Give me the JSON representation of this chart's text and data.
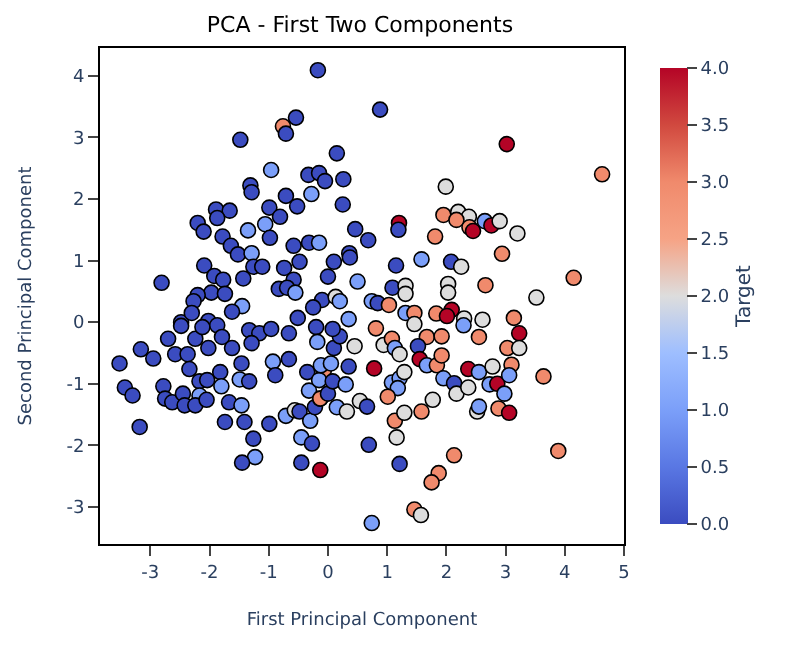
{
  "chart_data": {
    "type": "scatter",
    "title": "PCA - First Two Components",
    "xlabel": "First Principal Component",
    "ylabel": "Second Principal Component",
    "clabel": "Target",
    "x": [
      -0.17,
      -0.54,
      -0.76,
      -0.71,
      -1.48,
      0.15,
      -0.96,
      -0.33,
      -0.15,
      -0.05,
      0.26,
      -1.31,
      -1.29,
      -0.71,
      -0.28,
      -0.99,
      -0.52,
      0.25,
      -1.89,
      -1.66,
      -1.87,
      -0.81,
      -2.2,
      -2.1,
      -1.35,
      -1.06,
      -0.98,
      -1.78,
      0.46,
      -1.64,
      -1.52,
      -1.29,
      -0.58,
      -0.32,
      -0.15,
      0.36,
      -0.48,
      0.1,
      -2.09,
      -1.26,
      -1.11,
      -0.74,
      -1.92,
      -1.77,
      -1.43,
      -2.81,
      -0.58,
      0,
      0.5,
      -1.97,
      -1.74,
      -2.2,
      -2.27,
      -0.83,
      -0.69,
      -0.55,
      -1.45,
      -1.62,
      -0.1,
      0.13,
      0.2,
      -0.25,
      0.35,
      -2.48,
      -2.02,
      -0.51,
      -2.3,
      0.88,
      3.02,
      4.63,
      1.99,
      0.68,
      1.2,
      1.19,
      1.95,
      2.2,
      2.38,
      2.17,
      2.39,
      2.45,
      2.65,
      2.76,
      2.9,
      3.2,
      1.81,
      2.94,
      1.58,
      2.08,
      2.25,
      1.15,
      0.37,
      1.09,
      1.31,
      1.31,
      2.03,
      2.03,
      2.66,
      4.15,
      3.52,
      0.74,
      0.84,
      1.03,
      1.31,
      1.46,
      1.83,
      2.09,
      2.01,
      2.3,
      2.61,
      3.14,
      -3.52,
      -3.43,
      -3.3,
      -3.18,
      -3.16,
      -2.95,
      -2.7,
      -2.58,
      -2.78,
      -2.75,
      -2.63,
      -2.45,
      -2.42,
      -2.48,
      -2.37,
      -2.24,
      -2.12,
      -2.02,
      -2.34,
      -2.17,
      -2.04,
      -2.17,
      -2.24,
      -2.05,
      -1.87,
      -1.79,
      -1.82,
      -1.8,
      -1.67,
      -1.74,
      -1.62,
      -1.46,
      -1.49,
      -1.46,
      -1.41,
      -1.33,
      -1.16,
      -1.29,
      -1.33,
      -0.96,
      -1.26,
      -1.23,
      -1.45,
      -0.99,
      -0.93,
      -0.89,
      -0.66,
      -0.66,
      -0.71,
      -0.56,
      -0.48,
      -0.45,
      -0.45,
      -0.35,
      -0.32,
      -0.3,
      -0.27,
      -0.22,
      -0.2,
      -0.18,
      -0.13,
      -0.13,
      -0.07,
      -0.13,
      -0.15,
      -0.12,
      0,
      0.05,
      0.1,
      0.15,
      0.08,
      0.2,
      0.3,
      0.32,
      0.35,
      0.45,
      0.54,
      0.08,
      0.81,
      0.94,
      1.08,
      1.13,
      1.21,
      0.78,
      1.08,
      1.21,
      1.29,
      1.18,
      1.01,
      0.66,
      1.13,
      1.29,
      1.16,
      0.69,
      1.21,
      1.58,
      1.77,
      1.46,
      1.67,
      1.52,
      1.55,
      1.67,
      1.84,
      1.92,
      1.92,
      1.95,
      2.13,
      2.17,
      2.29,
      2.37,
      2.37,
      2.55,
      2.55,
      2.52,
      2.55,
      2.73,
      2.78,
      2.86,
      2.88,
      2.13,
      1.87,
      1.75,
      1.46,
      1.57,
      0.74,
      3.03,
      3.23,
      3.23,
      3.1,
      3.06,
      2.98,
      3.06,
      3.64,
      3.89
    ],
    "values": [
      4.09,
      3.32,
      3.18,
      3.06,
      2.96,
      2.74,
      2.47,
      2.39,
      2.42,
      2.29,
      2.32,
      2.22,
      2.11,
      2.05,
      2.08,
      1.86,
      1.88,
      1.91,
      1.83,
      1.81,
      1.69,
      1.71,
      1.61,
      1.47,
      1.49,
      1.59,
      1.37,
      1.39,
      1.51,
      1.24,
      1.1,
      1.12,
      1.24,
      1.29,
      1.29,
      1.12,
      0.98,
      0.98,
      0.92,
      0.9,
      0.9,
      0.88,
      0.75,
      0.69,
      0.71,
      0.64,
      0.69,
      0.74,
      0.66,
      0.48,
      0.46,
      0.44,
      0.34,
      0.54,
      0.56,
      0.48,
      0.26,
      0.17,
      0.36,
      0.41,
      0.34,
      0.24,
      0.05,
      0,
      0.02,
      0.07,
      0.15,
      3.45,
      2.89,
      2.4,
      2.2,
      1.33,
      1.61,
      1.5,
      1.74,
      1.79,
      1.71,
      1.66,
      1.54,
      1.48,
      1.64,
      1.57,
      1.64,
      1.44,
      1.39,
      1.11,
      1.02,
      0.98,
      0.9,
      0.92,
      1.05,
      0.56,
      0.59,
      0.46,
      0.62,
      0.48,
      0.6,
      0.72,
      0.4,
      0.34,
      0.31,
      0.28,
      0.15,
      0.15,
      0.14,
      0.2,
      0.1,
      0.06,
      0.04,
      0.07,
      -0.67,
      -1.06,
      -1.19,
      -1.7,
      -0.44,
      -0.59,
      -0.27,
      -0.52,
      -1.04,
      -1.24,
      -1.3,
      -1.16,
      -1.35,
      -0.06,
      -0.52,
      -0.27,
      -0.08,
      -0.42,
      -0.76,
      -0.96,
      -0.94,
      -1.19,
      -1.35,
      -1.26,
      -0.05,
      -0.24,
      -0.81,
      -1.04,
      -1.3,
      -1.62,
      -0.42,
      -0.67,
      -0.93,
      -1.35,
      -1.62,
      -0.13,
      -0.18,
      -0.34,
      -0.96,
      -0.11,
      -1.89,
      -2.19,
      -2.28,
      -1.65,
      -0.64,
      -0.86,
      -0.18,
      -0.6,
      -1.52,
      -1.43,
      -1.45,
      -1.87,
      -2.28,
      -0.81,
      -1.11,
      -1.6,
      -1.97,
      -1.38,
      -0.08,
      -0.32,
      -2.4,
      -1.24,
      -0.79,
      -1.24,
      -0.94,
      -0.7,
      -1.16,
      -0.67,
      -0.42,
      -1.38,
      -0.96,
      -0.23,
      -1.01,
      -1.45,
      -0.72,
      -0.39,
      -1.28,
      -0.11,
      -0.1,
      -0.37,
      -0.27,
      -0.42,
      -0.52,
      -0.75,
      -0.98,
      -0.91,
      -0.81,
      -1.07,
      -1.21,
      -1.37,
      -1.6,
      -1.47,
      -1.87,
      -1.99,
      -2.3,
      -1.45,
      -1.26,
      -0.03,
      -0.24,
      -0.39,
      -0.6,
      -0.7,
      -0.7,
      -0.54,
      -0.23,
      -0.91,
      -0.99,
      -1.16,
      -0.05,
      -0.76,
      -1.06,
      -0.24,
      -0.81,
      -1.45,
      -1.37,
      -1.01,
      -0.72,
      -1.0,
      -1.4,
      -2.16,
      -2.45,
      -2.6,
      -3.04,
      -3.13,
      -3.26,
      -0.42,
      -0.18,
      -0.42,
      -0.69,
      -0.86,
      -1.16,
      -1.47,
      -0.88,
      -2.09
    ],
    "cvalues": [
      0,
      0,
      3,
      0,
      0,
      0,
      1,
      0,
      0,
      0,
      0,
      0,
      0,
      0,
      1,
      0,
      0,
      0,
      0,
      0,
      0,
      0,
      0,
      0,
      1,
      1,
      0,
      0,
      0,
      0,
      0,
      1,
      0,
      0,
      1,
      0,
      0,
      0,
      0,
      0,
      0,
      0,
      0,
      0,
      0,
      0,
      0,
      0,
      1,
      0,
      0,
      0,
      0,
      0,
      0,
      1,
      1,
      0,
      0,
      2,
      1,
      0,
      1,
      0,
      0,
      0,
      0,
      0,
      4,
      3,
      2,
      0,
      4,
      0,
      3,
      2,
      2,
      3,
      3,
      4,
      1,
      4,
      2,
      2,
      3,
      3,
      1,
      0,
      2,
      0,
      0,
      0,
      2,
      2,
      2,
      2,
      3,
      3,
      2,
      1,
      0,
      3,
      1,
      3,
      3,
      4,
      4,
      2,
      2,
      3,
      0,
      0,
      0,
      0,
      0,
      0,
      0,
      0,
      0,
      0,
      0,
      0,
      0,
      0,
      0,
      0,
      0,
      0,
      0,
      0,
      0,
      1,
      0,
      0,
      0,
      0,
      0,
      1,
      0,
      0,
      0,
      0,
      1,
      1,
      0,
      0,
      0,
      0,
      0,
      0,
      0,
      1,
      0,
      0,
      1,
      0,
      0,
      0,
      1,
      2,
      0,
      1,
      0,
      0,
      1,
      1,
      0,
      0,
      0,
      1,
      4,
      3,
      3,
      3,
      1,
      1,
      0,
      1,
      0,
      1,
      0,
      0,
      1,
      2,
      0,
      2,
      2,
      0,
      3,
      2,
      3,
      1,
      2,
      4,
      1,
      1,
      2,
      1,
      3,
      0,
      3,
      2,
      2,
      0,
      0,
      3,
      2,
      2,
      3,
      0,
      4,
      1,
      3,
      3,
      3,
      1,
      0,
      2,
      1,
      4,
      2,
      3,
      1,
      2,
      1,
      1,
      2,
      4,
      3,
      3,
      3,
      3,
      3,
      2,
      1,
      3,
      4,
      2,
      3,
      1,
      1,
      4,
      3,
      3
    ],
    "xlim": [
      -3.85,
      5.0
    ],
    "xticks": [
      -3,
      -2,
      -1,
      0,
      1,
      2,
      3,
      4,
      5
    ],
    "ylim": [
      -3.6,
      4.45
    ],
    "yticks": [
      -3,
      -2,
      -1,
      0,
      1,
      2,
      3,
      4
    ],
    "clim": [
      0,
      4
    ],
    "cticks": [
      {
        "value": 0,
        "label": "0.0"
      },
      0.5,
      {
        "value": 1,
        "label": "1.0"
      },
      1.5,
      {
        "value": 2,
        "label": "2.0"
      },
      2.5,
      {
        "value": 3,
        "label": "3.0"
      },
      3.5,
      {
        "value": 4,
        "label": "4.0"
      }
    ],
    "marker": "circle",
    "grid": false,
    "legend": false
  }
}
